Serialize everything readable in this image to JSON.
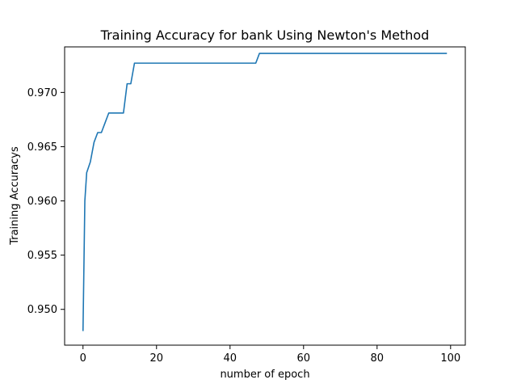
{
  "chart_data": {
    "type": "line",
    "title": "Training Accuracy for bank Using Newton's Method",
    "xlabel": "number of epoch",
    "ylabel": "Training Accuracys",
    "xlim": [
      -5,
      104
    ],
    "ylim": [
      0.9467,
      0.9742
    ],
    "xticks": [
      0,
      20,
      40,
      60,
      80,
      100
    ],
    "yticks": [
      0.95,
      0.955,
      0.96,
      0.965,
      0.97
    ],
    "ytick_labels": [
      "0.950",
      "0.955",
      "0.960",
      "0.965",
      "0.970"
    ],
    "grid": false,
    "color": "#1f77b4",
    "series": [
      {
        "x": [
          0,
          0.5,
          1,
          2,
          3,
          4,
          5,
          6,
          7,
          8,
          9,
          10,
          11,
          12,
          13,
          14,
          20,
          30,
          40,
          47,
          48,
          60,
          70,
          80,
          90,
          99
        ],
        "y": [
          0.948,
          0.96,
          0.9626,
          0.9636,
          0.9654,
          0.9663,
          0.9663,
          0.9672,
          0.9681,
          0.9681,
          0.9681,
          0.9681,
          0.9681,
          0.9708,
          0.9708,
          0.9727,
          0.9727,
          0.9727,
          0.9727,
          0.9727,
          0.9736,
          0.9736,
          0.9736,
          0.9736,
          0.9736,
          0.9736
        ]
      }
    ]
  }
}
